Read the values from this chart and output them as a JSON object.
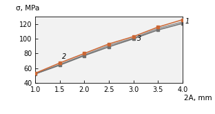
{
  "xlabel": "2A, mm",
  "ylabel": "σ, MPa",
  "xlim": [
    1.0,
    4.0
  ],
  "ylim": [
    40,
    130
  ],
  "xticks": [
    1.0,
    1.5,
    2.0,
    2.5,
    3.0,
    3.5,
    4.0
  ],
  "yticks": [
    40,
    60,
    80,
    100,
    120
  ],
  "x": [
    1.0,
    1.5,
    2.0,
    2.5,
    3.0,
    3.5,
    4.0
  ],
  "line1": [
    53,
    67,
    80,
    93,
    103,
    116,
    126
  ],
  "line2": [
    52,
    64,
    77,
    89,
    100,
    112,
    121
  ],
  "line3": [
    52,
    65,
    78,
    91,
    101,
    114,
    123
  ],
  "color_orange": "#CC6633",
  "color_gray_dark": "#707070",
  "color_gray_mid": "#909090",
  "label1": "1",
  "label2": "2",
  "label3": "3",
  "bg_color": "#f2f2f2"
}
